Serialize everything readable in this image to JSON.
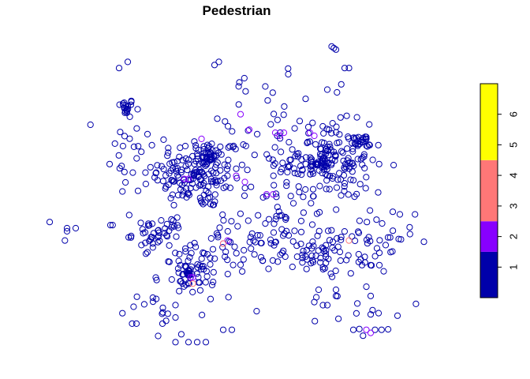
{
  "chart_data": {
    "type": "scatter",
    "title": "Pedestrian",
    "xlabel": "",
    "ylabel": "",
    "legend": {
      "position": "right",
      "breaks": [
        0,
        1.5,
        2.5,
        4.5,
        7
      ],
      "colors": [
        "#0000AA",
        "#8800FF",
        "#FF7777",
        "#FFFF00"
      ],
      "tick_values": [
        1,
        2,
        3,
        4,
        5,
        6
      ],
      "tick_labels": [
        "1",
        "2",
        "3",
        "4",
        "5",
        "6"
      ]
    },
    "xlim": [
      0,
      1
    ],
    "ylim": [
      0,
      1
    ],
    "series": [
      {
        "name": "1",
        "color": "#0000AA",
        "clusters": [
          {
            "x": 0.235,
            "y": 0.795,
            "sx": 0.01,
            "sy": 0.012,
            "n": 18
          },
          {
            "x": 0.4,
            "y": 0.58,
            "sx": 0.05,
            "sy": 0.06,
            "n": 160
          },
          {
            "x": 0.43,
            "y": 0.63,
            "sx": 0.012,
            "sy": 0.012,
            "n": 22
          },
          {
            "x": 0.7,
            "y": 0.62,
            "sx": 0.05,
            "sy": 0.06,
            "n": 150
          },
          {
            "x": 0.77,
            "y": 0.68,
            "sx": 0.015,
            "sy": 0.012,
            "n": 25
          },
          {
            "x": 0.685,
            "y": 0.61,
            "sx": 0.012,
            "sy": 0.012,
            "n": 22
          },
          {
            "x": 0.31,
            "y": 0.38,
            "sx": 0.03,
            "sy": 0.025,
            "n": 45
          },
          {
            "x": 0.4,
            "y": 0.26,
            "sx": 0.04,
            "sy": 0.04,
            "n": 60
          },
          {
            "x": 0.38,
            "y": 0.25,
            "sx": 0.01,
            "sy": 0.01,
            "n": 15
          },
          {
            "x": 0.54,
            "y": 0.38,
            "sx": 0.06,
            "sy": 0.06,
            "n": 70
          },
          {
            "x": 0.7,
            "y": 0.33,
            "sx": 0.05,
            "sy": 0.04,
            "n": 70
          },
          {
            "x": 0.8,
            "y": 0.35,
            "sx": 0.05,
            "sy": 0.06,
            "n": 25
          },
          {
            "x": 0.25,
            "y": 0.6,
            "sx": 0.04,
            "sy": 0.12,
            "n": 30
          },
          {
            "x": 0.55,
            "y": 0.7,
            "sx": 0.08,
            "sy": 0.1,
            "n": 40
          },
          {
            "x": 0.62,
            "y": 0.5,
            "sx": 0.12,
            "sy": 0.15,
            "n": 40
          },
          {
            "x": 0.3,
            "y": 0.12,
            "sx": 0.05,
            "sy": 0.04,
            "n": 15
          },
          {
            "x": 0.8,
            "y": 0.12,
            "sx": 0.06,
            "sy": 0.05,
            "n": 12
          }
        ],
        "extra_points": [
          [
            0.06,
            0.42
          ],
          [
            0.1,
            0.39
          ],
          [
            0.1,
            0.4
          ],
          [
            0.12,
            0.4
          ],
          [
            0.095,
            0.36
          ],
          [
            0.2,
            0.41
          ],
          [
            0.205,
            0.41
          ],
          [
            0.24,
            0.94
          ],
          [
            0.22,
            0.92
          ],
          [
            0.71,
            0.99
          ],
          [
            0.715,
            0.985
          ],
          [
            0.72,
            0.98
          ],
          [
            0.74,
            0.92
          ],
          [
            0.75,
            0.92
          ],
          [
            0.61,
            0.9
          ],
          [
            0.65,
            0.82
          ],
          [
            0.7,
            0.85
          ],
          [
            0.45,
            0.94
          ],
          [
            0.44,
            0.93
          ],
          [
            0.78,
            0.28
          ],
          [
            0.8,
            0.28
          ],
          [
            0.82,
            0.28
          ],
          [
            0.83,
            0.26
          ],
          [
            0.84,
            0.37
          ],
          [
            0.82,
            0.32
          ],
          [
            0.79,
            0.21
          ],
          [
            0.8,
            0.18
          ],
          [
            0.8,
            0.12
          ],
          [
            0.825,
            0.07
          ],
          [
            0.81,
            0.07
          ],
          [
            0.76,
            0.07
          ],
          [
            0.25,
            0.09
          ],
          [
            0.26,
            0.09
          ],
          [
            0.31,
            0.05
          ],
          [
            0.38,
            0.03
          ],
          [
            0.35,
            0.03
          ],
          [
            0.4,
            0.03
          ],
          [
            0.42,
            0.03
          ],
          [
            0.48,
            0.07
          ],
          [
            0.46,
            0.07
          ],
          [
            0.32,
            0.09
          ],
          [
            0.35,
            0.11
          ],
          [
            0.68,
            0.2
          ],
          [
            0.69,
            0.15
          ],
          [
            0.7,
            0.15
          ],
          [
            0.72,
            0.18
          ],
          [
            0.67,
            0.16
          ],
          [
            0.72,
            0.2
          ]
        ]
      },
      {
        "name": "2",
        "color": "#8800FF",
        "points": [
          [
            0.5,
            0.77
          ],
          [
            0.52,
            0.72
          ],
          [
            0.51,
            0.55
          ],
          [
            0.49,
            0.57
          ],
          [
            0.67,
            0.7
          ],
          [
            0.6,
            0.71
          ],
          [
            0.41,
            0.69
          ],
          [
            0.58,
            0.71
          ],
          [
            0.46,
            0.35
          ],
          [
            0.47,
            0.36
          ],
          [
            0.37,
            0.56
          ],
          [
            0.38,
            0.56
          ],
          [
            0.575,
            0.51
          ],
          [
            0.56,
            0.51
          ],
          [
            0.385,
            0.24
          ],
          [
            0.39,
            0.24
          ],
          [
            0.66,
            0.71
          ],
          [
            0.59,
            0.7
          ],
          [
            0.8,
            0.06
          ],
          [
            0.79,
            0.07
          ]
        ]
      },
      {
        "name": "3",
        "color": "#FF7777",
        "points": [
          [
            0.46,
            0.35
          ],
          [
            0.75,
            0.36
          ],
          [
            0.39,
            0.22
          ]
        ]
      }
    ]
  }
}
